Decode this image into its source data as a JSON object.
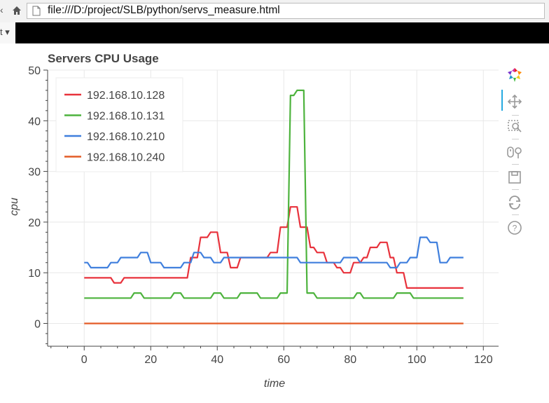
{
  "browser": {
    "url": "file:///D:/project/SLB/python/servs_measure.html",
    "bookmark_glyph": "t ▾"
  },
  "colors": {
    "grid": "#e8e8e8",
    "axis": "#444444",
    "text": "#444444"
  },
  "toolbar": {
    "tools": [
      "bokeh-logo-icon",
      "pan-icon",
      "box-zoom-icon",
      "wheel-zoom-icon",
      "save-icon",
      "reset-icon",
      "help-icon"
    ],
    "active_tool": "pan-icon"
  },
  "chart_data": {
    "type": "line",
    "title": "Servers CPU Usage",
    "xlabel": "time",
    "ylabel": "cpu",
    "xlim": [
      -11,
      125
    ],
    "ylim": [
      -4.5,
      50
    ],
    "xticks": [
      "0",
      "20",
      "40",
      "60",
      "80",
      "100",
      "120"
    ],
    "yticks": [
      "0",
      "10",
      "20",
      "30",
      "40",
      "50"
    ],
    "grid": true,
    "legend_position": "top-left",
    "series": [
      {
        "name": "192.168.10.128",
        "color": "#e8323c",
        "points": [
          [
            0,
            9
          ],
          [
            8,
            9
          ],
          [
            9,
            8
          ],
          [
            11,
            8
          ],
          [
            12,
            9
          ],
          [
            31,
            9
          ],
          [
            32,
            13
          ],
          [
            34,
            13
          ],
          [
            35,
            17
          ],
          [
            37,
            17
          ],
          [
            38,
            18
          ],
          [
            40,
            18
          ],
          [
            41,
            14
          ],
          [
            43,
            14
          ],
          [
            44,
            11
          ],
          [
            46,
            11
          ],
          [
            47,
            13
          ],
          [
            55,
            13
          ],
          [
            56,
            14
          ],
          [
            58,
            14
          ],
          [
            59,
            19
          ],
          [
            61,
            19
          ],
          [
            62,
            23
          ],
          [
            64,
            23
          ],
          [
            65,
            19
          ],
          [
            67,
            19
          ],
          [
            68,
            15
          ],
          [
            69,
            15
          ],
          [
            70,
            14
          ],
          [
            72,
            14
          ],
          [
            73,
            12
          ],
          [
            74,
            12
          ],
          [
            75,
            12
          ],
          [
            76,
            11
          ],
          [
            77,
            11
          ],
          [
            78,
            10
          ],
          [
            80,
            10
          ],
          [
            81,
            12
          ],
          [
            83,
            12
          ],
          [
            84,
            13
          ],
          [
            85,
            13
          ],
          [
            86,
            15
          ],
          [
            88,
            15
          ],
          [
            89,
            16
          ],
          [
            91,
            16
          ],
          [
            92,
            13
          ],
          [
            93,
            13
          ],
          [
            94,
            10
          ],
          [
            96,
            10
          ],
          [
            97,
            7
          ],
          [
            114,
            7
          ]
        ]
      },
      {
        "name": "192.168.10.131",
        "color": "#4db33d",
        "points": [
          [
            0,
            5
          ],
          [
            14,
            5
          ],
          [
            15,
            6
          ],
          [
            17,
            6
          ],
          [
            18,
            5
          ],
          [
            26,
            5
          ],
          [
            27,
            6
          ],
          [
            29,
            6
          ],
          [
            30,
            5
          ],
          [
            38,
            5
          ],
          [
            39,
            6
          ],
          [
            41,
            6
          ],
          [
            42,
            5
          ],
          [
            46,
            5
          ],
          [
            47,
            6
          ],
          [
            52,
            6
          ],
          [
            53,
            5
          ],
          [
            58,
            5
          ],
          [
            59,
            6
          ],
          [
            61,
            6
          ],
          [
            62,
            45
          ],
          [
            63,
            45
          ],
          [
            64,
            46
          ],
          [
            66,
            46
          ],
          [
            67,
            6
          ],
          [
            69,
            6
          ],
          [
            70,
            5
          ],
          [
            81,
            5
          ],
          [
            82,
            6
          ],
          [
            83,
            6
          ],
          [
            84,
            5
          ],
          [
            93,
            5
          ],
          [
            94,
            6
          ],
          [
            98,
            6
          ],
          [
            99,
            5
          ],
          [
            114,
            5
          ]
        ]
      },
      {
        "name": "192.168.10.210",
        "color": "#3f7fdd",
        "points": [
          [
            0,
            12
          ],
          [
            1,
            12
          ],
          [
            2,
            11
          ],
          [
            7,
            11
          ],
          [
            8,
            12
          ],
          [
            10,
            12
          ],
          [
            11,
            13
          ],
          [
            16,
            13
          ],
          [
            17,
            14
          ],
          [
            19,
            14
          ],
          [
            20,
            12
          ],
          [
            23,
            12
          ],
          [
            24,
            11
          ],
          [
            29,
            11
          ],
          [
            30,
            12
          ],
          [
            32,
            12
          ],
          [
            33,
            14
          ],
          [
            35,
            14
          ],
          [
            36,
            13
          ],
          [
            38,
            13
          ],
          [
            39,
            12
          ],
          [
            41,
            12
          ],
          [
            42,
            13
          ],
          [
            61,
            13
          ],
          [
            62,
            13
          ],
          [
            64,
            13
          ],
          [
            65,
            12
          ],
          [
            77,
            12
          ],
          [
            78,
            13
          ],
          [
            82,
            13
          ],
          [
            83,
            12
          ],
          [
            90,
            12
          ],
          [
            91,
            12
          ],
          [
            92,
            11
          ],
          [
            94,
            11
          ],
          [
            95,
            12
          ],
          [
            97,
            12
          ],
          [
            98,
            13
          ],
          [
            100,
            13
          ],
          [
            101,
            17
          ],
          [
            103,
            17
          ],
          [
            104,
            16
          ],
          [
            106,
            16
          ],
          [
            107,
            12
          ],
          [
            109,
            12
          ],
          [
            110,
            13
          ],
          [
            114,
            13
          ]
        ]
      },
      {
        "name": "192.168.10.240",
        "color": "#e35b26",
        "points": [
          [
            0,
            0
          ],
          [
            114,
            0
          ]
        ]
      }
    ]
  }
}
